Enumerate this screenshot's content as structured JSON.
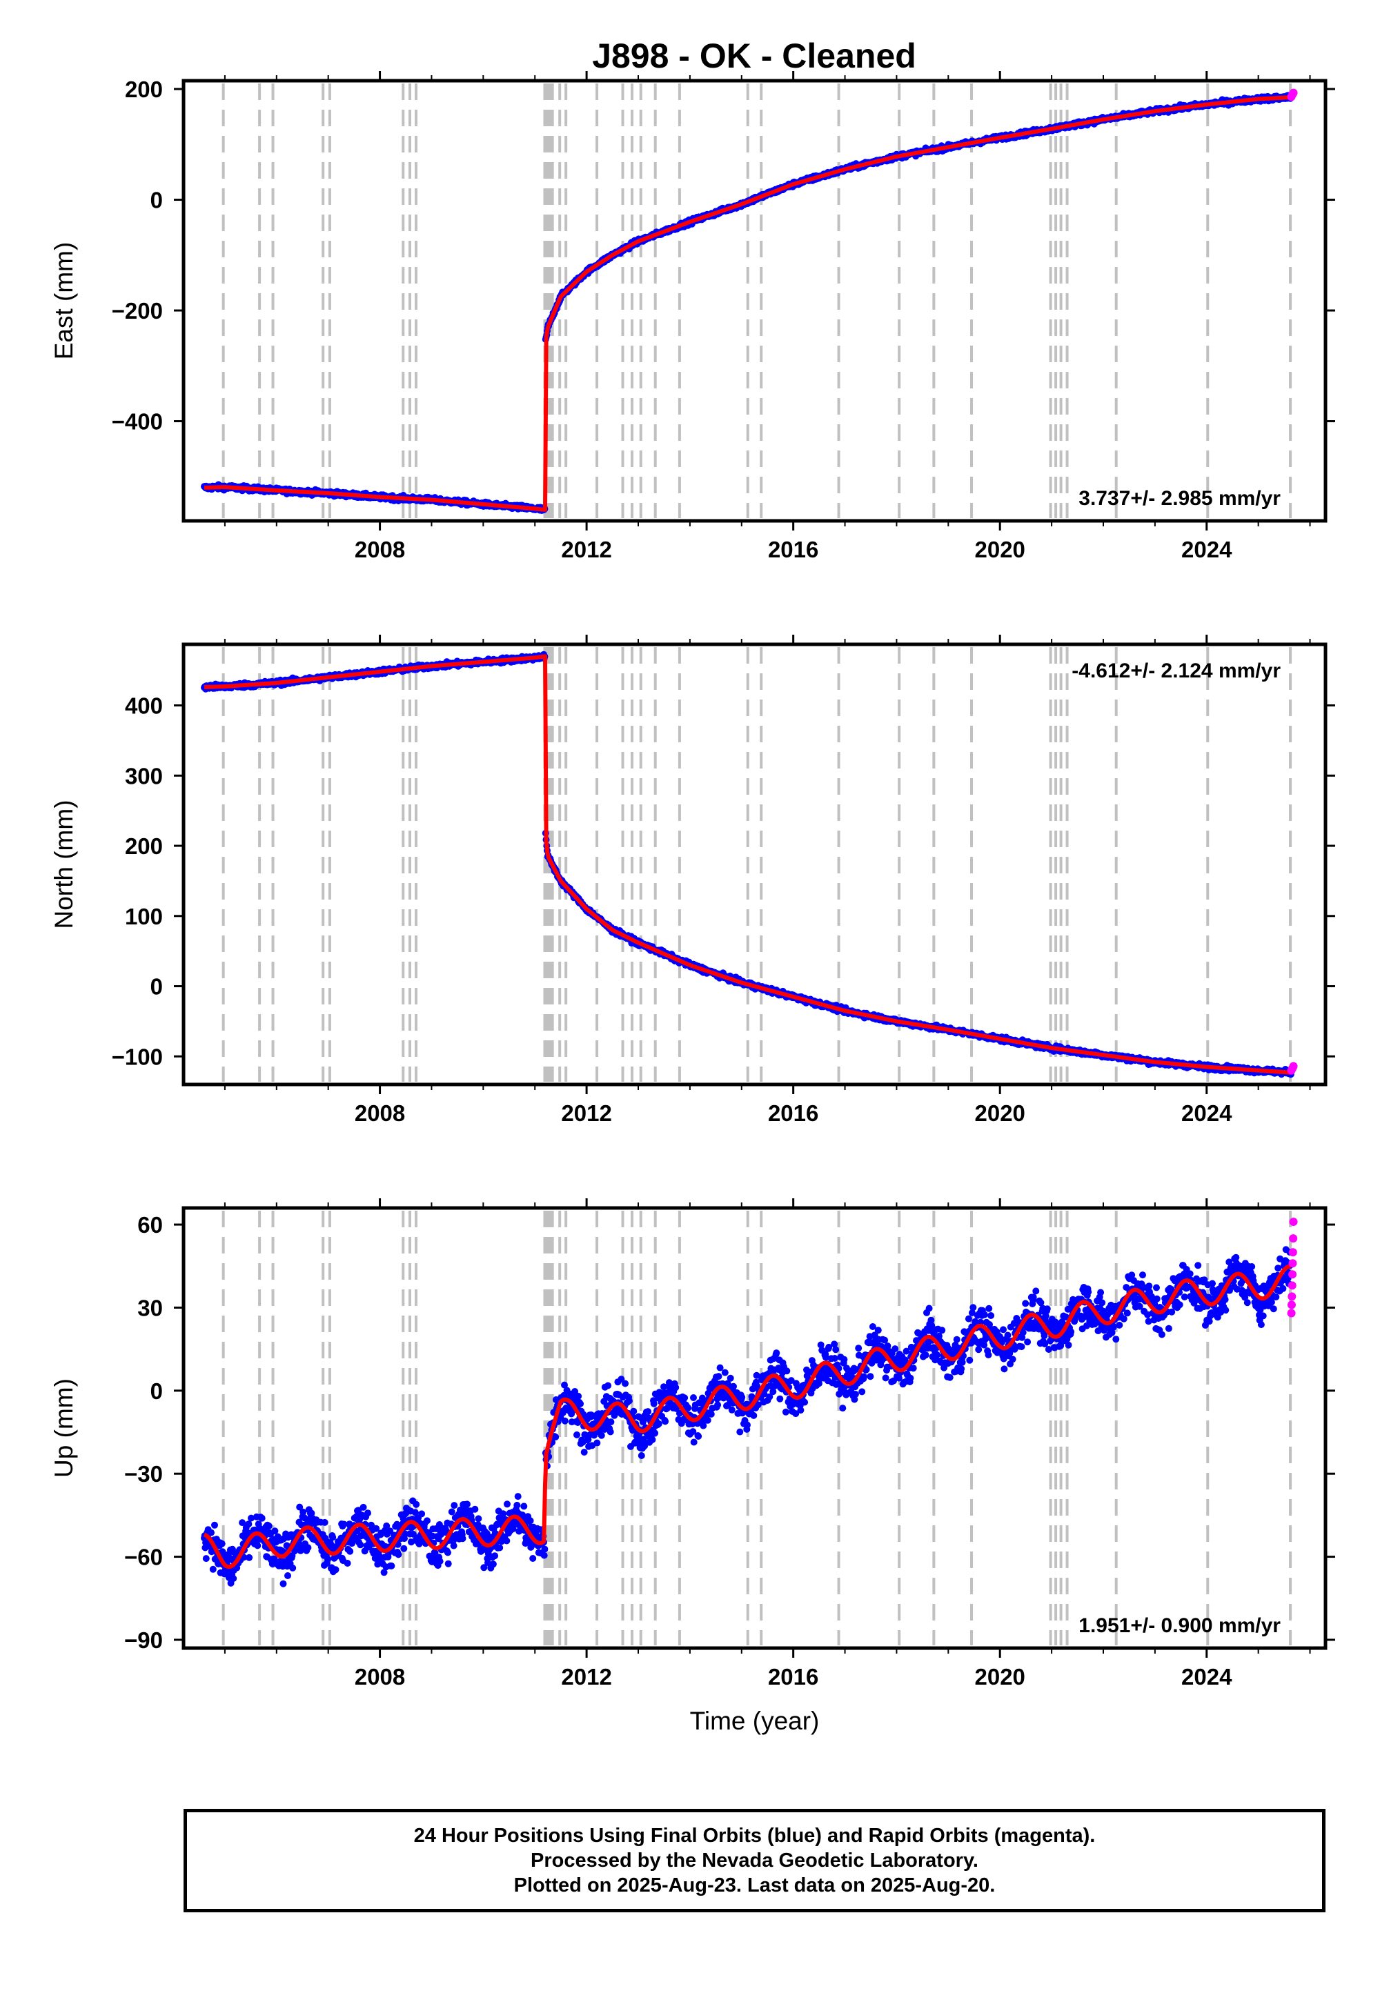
{
  "title": "J898  - OK - Cleaned",
  "colors": {
    "final": "#0000ff",
    "rapid": "#ff00ff",
    "model": "#ff0000",
    "steps": "#c0c0c0"
  },
  "step_epochs": [
    2004.97,
    2005.67,
    2005.93,
    2006.9,
    2007.03,
    2008.45,
    2008.58,
    2008.7,
    2011.19,
    2011.24,
    2011.29,
    2011.34,
    2011.48,
    2011.6,
    2012.2,
    2012.7,
    2012.88,
    2013.05,
    2013.33,
    2013.8,
    2015.12,
    2015.38,
    2016.88,
    2018.05,
    2018.72,
    2019.45,
    2020.98,
    2021.08,
    2021.18,
    2021.3,
    2022.25,
    2024.02,
    2025.62
  ],
  "chart_data": [
    {
      "type": "scatter",
      "name": "east",
      "ylabel": "East (mm)",
      "xlabel": "",
      "xlim": [
        2004.2,
        2026.3
      ],
      "ylim": [
        -580,
        215
      ],
      "xticks": [
        2008,
        2012,
        2016,
        2020,
        2024
      ],
      "yticks": [
        -400,
        -200,
        0,
        200
      ],
      "ytick_labels": [
        "−400",
        "−200",
        "0",
        "200"
      ],
      "rate": "3.737+/- 2.985 mm/yr",
      "rate_position": "bottom-right",
      "noise": 3,
      "model": [
        [
          2004.6,
          -520
        ],
        [
          2005.0,
          -519
        ],
        [
          2006.0,
          -525
        ],
        [
          2007.0,
          -530
        ],
        [
          2008.0,
          -537
        ],
        [
          2009.0,
          -542
        ],
        [
          2010.0,
          -550
        ],
        [
          2011.0,
          -558
        ],
        [
          2011.2,
          -560
        ],
        [
          2011.2,
          -260
        ],
        [
          2011.25,
          -230
        ],
        [
          2011.5,
          -175
        ],
        [
          2012.0,
          -130
        ],
        [
          2012.5,
          -100
        ],
        [
          2013.0,
          -75
        ],
        [
          2014.0,
          -40
        ],
        [
          2015.0,
          -8
        ],
        [
          2016.0,
          28
        ],
        [
          2017.0,
          55
        ],
        [
          2018.0,
          78
        ],
        [
          2019.0,
          95
        ],
        [
          2020.0,
          112
        ],
        [
          2021.0,
          128
        ],
        [
          2022.0,
          145
        ],
        [
          2023.0,
          160
        ],
        [
          2024.0,
          172
        ],
        [
          2025.0,
          182
        ],
        [
          2025.63,
          185
        ]
      ],
      "rapid": [
        [
          2025.64,
          186
        ],
        [
          2025.66,
          190
        ],
        [
          2025.68,
          193
        ]
      ]
    },
    {
      "type": "scatter",
      "name": "north",
      "ylabel": "North (mm)",
      "xlabel": "",
      "xlim": [
        2004.2,
        2026.3
      ],
      "ylim": [
        -140,
        487
      ],
      "xticks": [
        2008,
        2012,
        2016,
        2020,
        2024
      ],
      "yticks": [
        -100,
        0,
        100,
        200,
        300,
        400
      ],
      "ytick_labels": [
        "−100",
        "0",
        "100",
        "200",
        "300",
        "400"
      ],
      "rate": "-4.612+/- 2.124 mm/yr",
      "rate_position": "top-right",
      "noise": 2.5,
      "model": [
        [
          2004.6,
          426
        ],
        [
          2005.0,
          427
        ],
        [
          2006.0,
          432
        ],
        [
          2007.0,
          440
        ],
        [
          2008.0,
          448
        ],
        [
          2009.0,
          456
        ],
        [
          2010.0,
          462
        ],
        [
          2011.0,
          468
        ],
        [
          2011.2,
          470
        ],
        [
          2011.2,
          220
        ],
        [
          2011.25,
          185
        ],
        [
          2011.5,
          150
        ],
        [
          2012.0,
          110
        ],
        [
          2012.5,
          80
        ],
        [
          2013.0,
          62
        ],
        [
          2014.0,
          30
        ],
        [
          2015.0,
          5
        ],
        [
          2016.0,
          -15
        ],
        [
          2017.0,
          -35
        ],
        [
          2018.0,
          -50
        ],
        [
          2019.0,
          -62
        ],
        [
          2020.0,
          -75
        ],
        [
          2021.0,
          -88
        ],
        [
          2022.0,
          -98
        ],
        [
          2023.0,
          -108
        ],
        [
          2024.0,
          -115
        ],
        [
          2025.0,
          -120
        ],
        [
          2025.63,
          -123
        ]
      ],
      "rapid": [
        [
          2025.64,
          -120
        ],
        [
          2025.66,
          -117
        ],
        [
          2025.68,
          -114
        ]
      ]
    },
    {
      "type": "scatter",
      "name": "up",
      "ylabel": "Up (mm)",
      "xlabel": "Time (year)",
      "xlim": [
        2004.2,
        2026.3
      ],
      "ylim": [
        -93,
        66
      ],
      "xticks": [
        2008,
        2012,
        2016,
        2020,
        2024
      ],
      "yticks": [
        -90,
        -60,
        -30,
        0,
        30,
        60
      ],
      "ytick_labels": [
        "−90",
        "−60",
        "−30",
        "0",
        "30",
        "60"
      ],
      "rate": "1.951+/- 0.900 mm/yr",
      "rate_position": "bottom-right",
      "noise": 5.5,
      "seasonal_amplitude": 5,
      "model": [
        [
          2004.6,
          -57
        ],
        [
          2005.0,
          -59
        ],
        [
          2006.0,
          -55
        ],
        [
          2007.0,
          -54
        ],
        [
          2008.0,
          -53
        ],
        [
          2009.0,
          -52
        ],
        [
          2010.0,
          -51
        ],
        [
          2011.19,
          -50
        ],
        [
          2011.2,
          -20
        ],
        [
          2011.3,
          -15
        ],
        [
          2011.5,
          -8
        ],
        [
          2012.0,
          -9
        ],
        [
          2013.0,
          -10
        ],
        [
          2014.0,
          -6
        ],
        [
          2015.0,
          -2
        ],
        [
          2016.0,
          2
        ],
        [
          2017.0,
          7
        ],
        [
          2018.0,
          12
        ],
        [
          2019.0,
          16
        ],
        [
          2020.0,
          20
        ],
        [
          2021.0,
          24
        ],
        [
          2022.0,
          29
        ],
        [
          2023.0,
          33
        ],
        [
          2024.0,
          36
        ],
        [
          2025.0,
          38
        ],
        [
          2025.63,
          40
        ]
      ],
      "rapid": [
        [
          2025.64,
          28
        ],
        [
          2025.645,
          31
        ],
        [
          2025.65,
          34
        ],
        [
          2025.655,
          38
        ],
        [
          2025.66,
          42
        ],
        [
          2025.665,
          46
        ],
        [
          2025.67,
          50
        ],
        [
          2025.675,
          55
        ],
        [
          2025.68,
          61
        ]
      ]
    }
  ],
  "footer": {
    "line1": "24 Hour Positions Using Final Orbits (blue) and Rapid Orbits (magenta).",
    "line2": "Processed by the Nevada Geodetic Laboratory.",
    "line3": "Plotted on 2025-Aug-23. Last data on 2025-Aug-20."
  }
}
